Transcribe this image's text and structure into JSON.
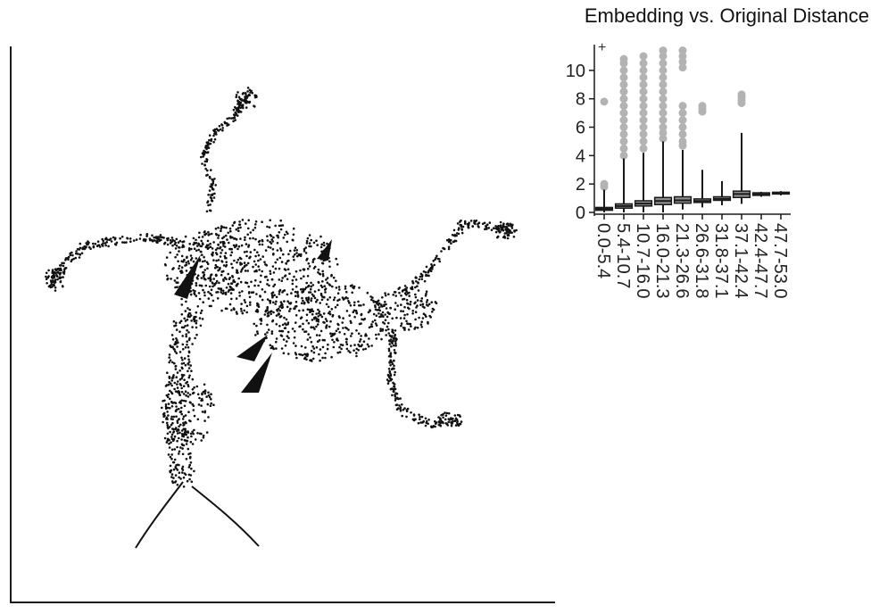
{
  "colors": {
    "axis": "#1a1a1a",
    "point": "#111111",
    "outlier": "#b3b3b3",
    "box_fill": "#8f8f8f",
    "box_stroke": "#1a1a1a"
  },
  "chart_data": [
    {
      "type": "scatter",
      "title": "",
      "xlabel": "",
      "ylabel": "",
      "grid": false,
      "description_of_marks": "dense black point cloud, no tick labels on axes"
    },
    {
      "type": "box",
      "title": "Embedding vs. Original Distance",
      "xlabel": "",
      "ylabel": "",
      "ylim": [
        0,
        11.5
      ],
      "yticks": [
        0,
        2,
        4,
        6,
        8,
        10
      ],
      "categories": [
        "0.0-5.4",
        "5.4-10.7",
        "10.7-16.0",
        "16.0-21.3",
        "21.3-26.6",
        "26.6-31.8",
        "31.8-37.1",
        "37.1-42.4",
        "42.4-47.7",
        "47.7-53.0"
      ],
      "boxes": [
        {
          "min": 0.0,
          "q1": 0.15,
          "median": 0.25,
          "q3": 0.35,
          "max": 1.6,
          "outliers": [
            1.8,
            2.0,
            7.8
          ]
        },
        {
          "min": 0.0,
          "q1": 0.3,
          "median": 0.45,
          "q3": 0.6,
          "max": 3.8,
          "outliers": [
            4.0,
            4.5,
            5.0,
            5.5,
            6.0,
            6.5,
            7.0,
            7.5,
            8.0,
            8.5,
            9.0,
            9.5,
            10.0,
            10.5,
            10.8
          ]
        },
        {
          "min": 0.0,
          "q1": 0.45,
          "median": 0.62,
          "q3": 0.82,
          "max": 4.2,
          "outliers": [
            4.5,
            5.0,
            5.5,
            6.0,
            6.5,
            7.0,
            7.5,
            8.0,
            8.5,
            9.0,
            9.5,
            10.0,
            10.5,
            11.0
          ]
        },
        {
          "min": 0.0,
          "q1": 0.55,
          "median": 0.8,
          "q3": 1.05,
          "max": 5.0,
          "outliers": [
            5.2,
            5.6,
            6.0,
            6.5,
            7.0,
            7.5,
            8.0,
            8.5,
            9.0,
            9.5,
            10.0,
            10.5,
            11.0,
            11.4
          ]
        },
        {
          "min": 0.2,
          "q1": 0.65,
          "median": 0.85,
          "q3": 1.1,
          "max": 4.4,
          "outliers": [
            4.7,
            5.0,
            5.5,
            6.0,
            6.5,
            7.0,
            7.5,
            10.2,
            10.6,
            11.0,
            11.4
          ]
        },
        {
          "min": 0.35,
          "q1": 0.7,
          "median": 0.8,
          "q3": 0.95,
          "max": 3.0,
          "outliers": [
            7.1,
            7.3,
            7.5
          ]
        },
        {
          "min": 0.5,
          "q1": 0.85,
          "median": 0.95,
          "q3": 1.1,
          "max": 2.2,
          "outliers": []
        },
        {
          "min": 0.6,
          "q1": 1.05,
          "median": 1.3,
          "q3": 1.5,
          "max": 5.6,
          "outliers": [
            7.7,
            7.9,
            8.1,
            8.3
          ]
        },
        {
          "min": 1.1,
          "q1": 1.2,
          "median": 1.28,
          "q3": 1.38,
          "max": 1.45,
          "outliers": []
        },
        {
          "min": 1.2,
          "q1": 1.3,
          "median": 1.35,
          "q3": 1.42,
          "max": 1.5,
          "outliers": []
        }
      ]
    }
  ]
}
